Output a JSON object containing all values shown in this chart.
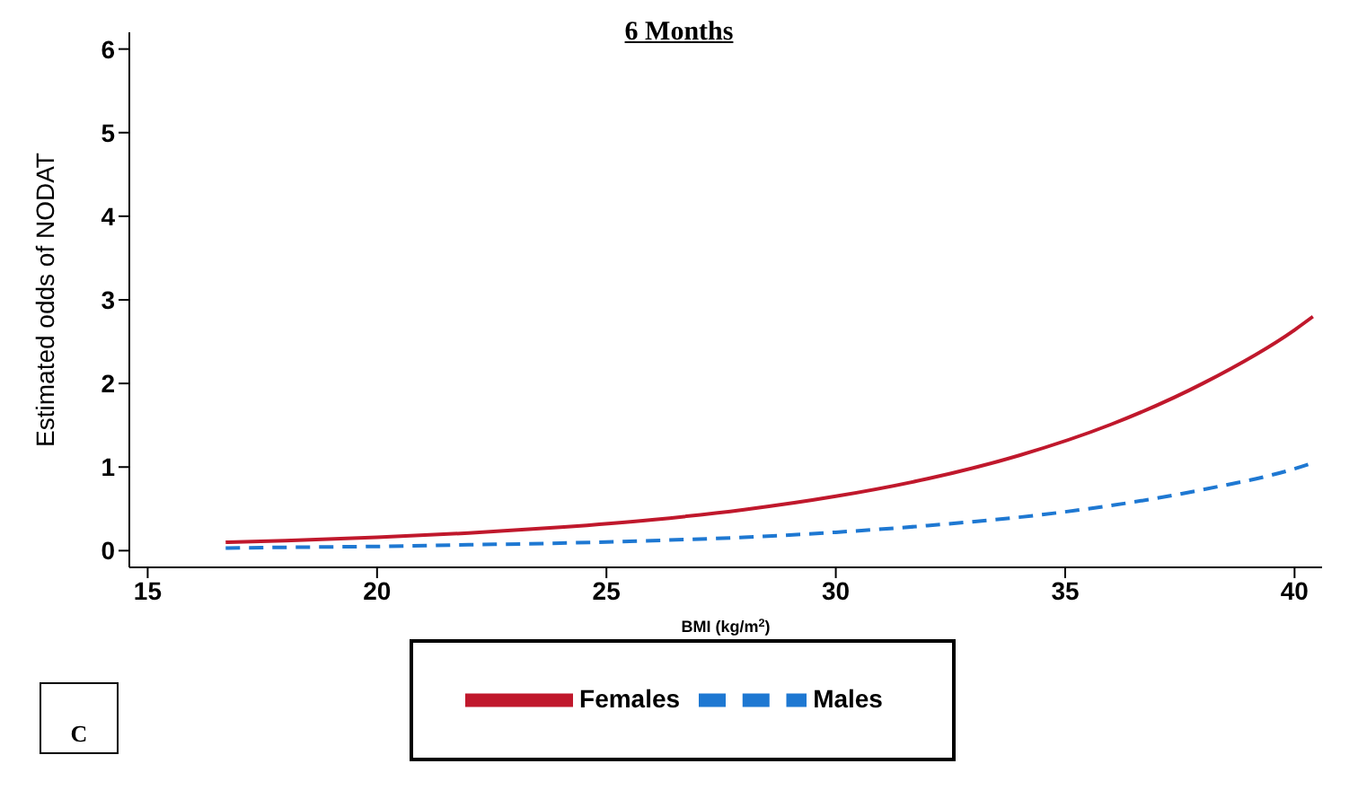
{
  "chart_data": {
    "type": "line",
    "title": "6 Months",
    "xlabel": "BMI (kg/m$^{2}$)",
    "ylabel": "Estimated odds of NODAT",
    "x": [
      16.7,
      18,
      20,
      22,
      24,
      26,
      28,
      30,
      32,
      34,
      36,
      38,
      40,
      40.4
    ],
    "series": [
      {
        "name": "Females",
        "color": "#c0182c",
        "line_style": "solid",
        "values": [
          0.1,
          0.12,
          0.16,
          0.21,
          0.28,
          0.37,
          0.49,
          0.65,
          0.86,
          1.14,
          1.51,
          2.0,
          2.64,
          2.8
        ]
      },
      {
        "name": "Males",
        "color": "#1e78d2",
        "line_style": "dashed",
        "values": [
          0.03,
          0.04,
          0.05,
          0.07,
          0.09,
          0.12,
          0.16,
          0.22,
          0.3,
          0.4,
          0.54,
          0.73,
          0.98,
          1.05
        ]
      }
    ],
    "xlim": [
      14.6,
      40.6
    ],
    "xticks": [
      15,
      20,
      25,
      30,
      35,
      40
    ],
    "ylim": [
      -0.2,
      6.2
    ],
    "yticks": [
      0,
      1,
      2,
      3,
      4,
      5,
      6
    ],
    "grid": false,
    "legend": "bottom",
    "marker": "none",
    "annotations": [
      "C"
    ]
  }
}
